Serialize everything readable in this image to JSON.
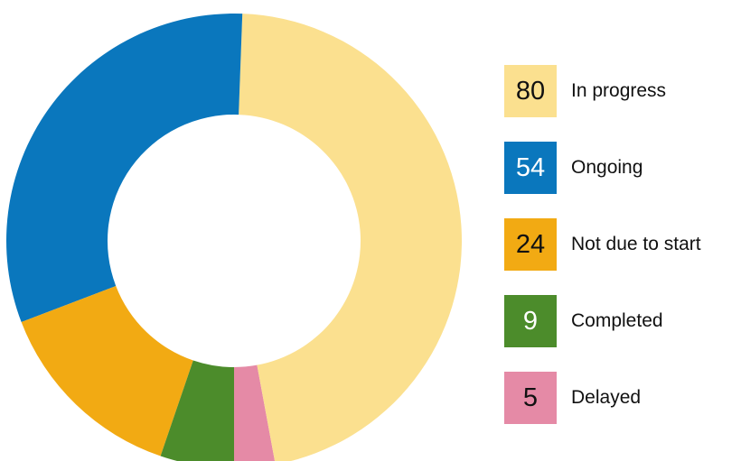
{
  "chart_data": {
    "type": "pie",
    "categories": [
      "In progress",
      "Ongoing",
      "Not due to start",
      "Completed",
      "Delayed"
    ],
    "values": [
      80,
      54,
      24,
      9,
      5
    ],
    "display_values": [
      "80",
      "54",
      "24",
      "9",
      "5"
    ],
    "colors": [
      "#fbe08f",
      "#0a77bd",
      "#f2aa13",
      "#4c8c2b",
      "#e58aa6"
    ],
    "label_colors": [
      "#111111",
      "#ffffff",
      "#111111",
      "#ffffff",
      "#111111"
    ],
    "start_category": "Delayed",
    "start_angle_deg": 180,
    "direction": "counterclockwise",
    "donut": true,
    "legend_placement": "right"
  }
}
